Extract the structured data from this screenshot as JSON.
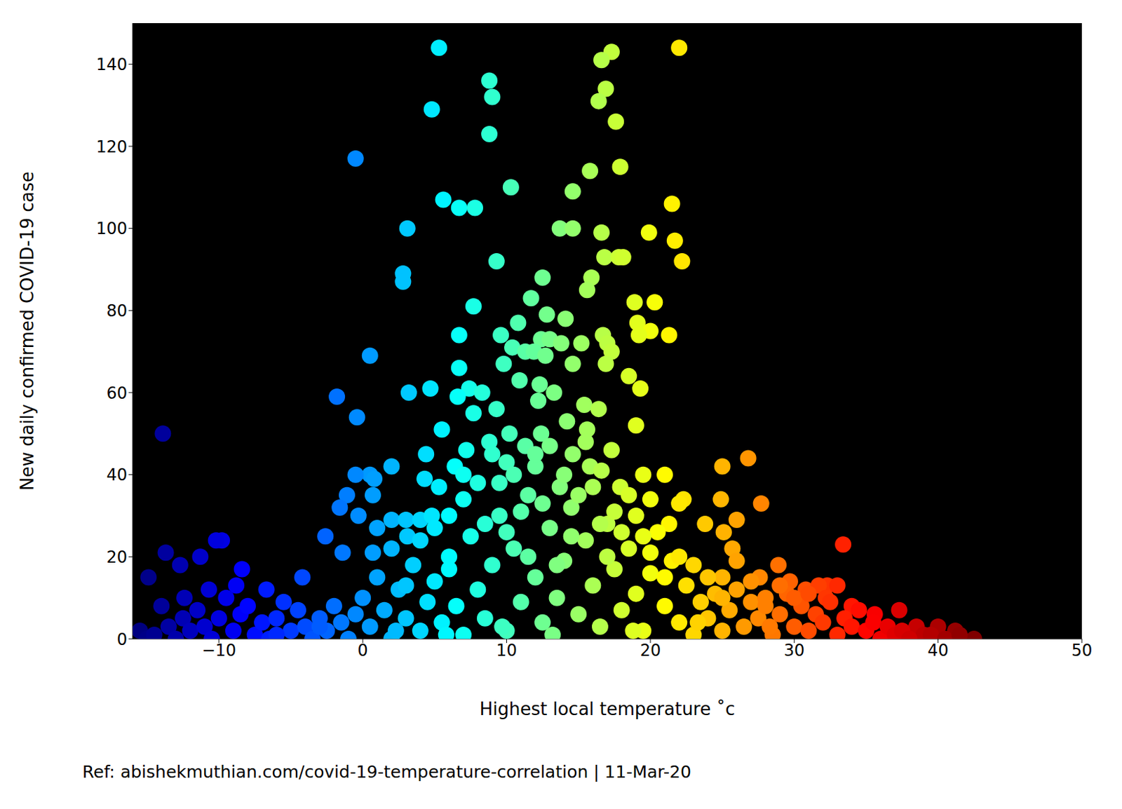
{
  "chart_data": {
    "type": "scatter",
    "x_label": "Highest local temperature ˚c",
    "y_label": "New daily confirmed COVID-19 case",
    "annotations": [
      "Ref: abishekmuthian.com/covid-19-temperature-correlation | 11-Mar-20"
    ],
    "x": [
      5.3,
      22,
      17.3,
      16.6,
      8.8,
      16.9,
      9,
      16.4,
      4.8,
      17.6,
      8.8,
      -0.5,
      17.9,
      15.8,
      21.5,
      10.3,
      14.6,
      5.6,
      6.7,
      7.8,
      3.1,
      13.7,
      14.6,
      16.6,
      19.9,
      21.7,
      16.8,
      17.8,
      18.1,
      22.2,
      9.3,
      2.8,
      2.8,
      15.9,
      12.5,
      15.6,
      11.7,
      18.9,
      20.3,
      7.7,
      12.8,
      14.1,
      19.1,
      10.8,
      20,
      19.2,
      21.3,
      6.7,
      16.7,
      9.6,
      12.4,
      13,
      13.8,
      15.2,
      17,
      10.4,
      11.3,
      11.9,
      17.3,
      12.7,
      0.5,
      9.8,
      14.6,
      16.9,
      6.7,
      18.5,
      10.9,
      12.3,
      7.4,
      4.7,
      19.3,
      3.2,
      8.3,
      13.3,
      -1.8,
      6.6,
      12.2,
      15.4,
      16.4,
      9.3,
      -0.4,
      7.7,
      14.2,
      19,
      5.5,
      15.6,
      10.2,
      12.4,
      8.8,
      11.3,
      17.3,
      7.2,
      14.6,
      4.4,
      21,
      19.5,
      10,
      12,
      15.8,
      16.6,
      6.4,
      2,
      26.8,
      25,
      0.5,
      -0.5,
      0.8,
      4.3,
      13.7,
      17.9,
      -1.1,
      0.7,
      5.3,
      22.3,
      20,
      24.9,
      27.7,
      -1.6,
      -0.3,
      2,
      3,
      4,
      4.8,
      6,
      22,
      23.8,
      26,
      21.3,
      25.1,
      -2.6,
      3.1,
      -1.4,
      0.7,
      25.7,
      33.4,
      -9.8,
      -10.2,
      -13.7,
      -12.7,
      -8.4,
      -13.9,
      -14.9,
      -4.2,
      -6.7,
      -10.7,
      -12.4,
      -8.8,
      -14,
      -11.3,
      28.9,
      25,
      27.6,
      29.7,
      30.8,
      32.3,
      33,
      31.7,
      32.2,
      34,
      35.6,
      37.3,
      38.5,
      40,
      41.2,
      42.5,
      36.6,
      39,
      -15.5,
      -15,
      -14.5,
      -13.5,
      -13,
      -12.5,
      -12,
      -11.5,
      -11,
      -10.5,
      -10,
      -9.5,
      -9,
      -8.5,
      -8,
      -7.5,
      -7,
      -6.5,
      -6,
      -5.5,
      -5,
      -4.5,
      -4,
      -3.5,
      -3,
      -2.5,
      -2,
      -1.5,
      -1,
      -0.5,
      0,
      0.5,
      1,
      1.5,
      2,
      2.5,
      3,
      3.5,
      4,
      4.5,
      5,
      5.5,
      6,
      6.5,
      7,
      7.5,
      8,
      8.5,
      9,
      9.5,
      10,
      10.5,
      11,
      11.5,
      12,
      12.5,
      13,
      13.5,
      14,
      14.5,
      15,
      15.5,
      16,
      16.5,
      17,
      17.5,
      18,
      18.5,
      19,
      19.5,
      20,
      20.5,
      21,
      21.5,
      22,
      22.5,
      23,
      23.5,
      24,
      24.5,
      25,
      25.5,
      26,
      26.5,
      27,
      27.5,
      28,
      28.5,
      29,
      29.5,
      30,
      30.5,
      31,
      31.5,
      32,
      32.5,
      33,
      33.5,
      34,
      34.5,
      35,
      35.5,
      36,
      36.5,
      37,
      37.5,
      38,
      39.5,
      40.5,
      41.5,
      1,
      2,
      3,
      4,
      5,
      6,
      7,
      7,
      8,
      8.5,
      9,
      9.5,
      10,
      10.5,
      11,
      11.5,
      12,
      12.5,
      13,
      13.5,
      14,
      14.5,
      15,
      15.5,
      16,
      16.5,
      17,
      17.5,
      18,
      18.5,
      19,
      19.5,
      20,
      21,
      22,
      23,
      24,
      25,
      26,
      27,
      28,
      29,
      30,
      31,
      -6,
      -3,
      2.3,
      5.8,
      9.7,
      13.2,
      18.8,
      23.3,
      28.3
    ],
    "values": [
      144,
      144,
      143,
      141,
      136,
      134,
      132,
      131,
      129,
      126,
      123,
      117,
      115,
      114,
      106,
      110,
      109,
      107,
      105,
      105,
      100,
      100,
      100,
      99,
      99,
      97,
      93,
      93,
      93,
      92,
      92,
      89,
      87,
      88,
      88,
      85,
      83,
      82,
      82,
      81,
      79,
      78,
      77,
      77,
      75,
      74,
      74,
      74,
      74,
      74,
      73,
      73,
      72,
      72,
      72,
      71,
      70,
      70,
      70,
      69,
      69,
      67,
      67,
      67,
      66,
      64,
      63,
      62,
      61,
      61,
      61,
      60,
      60,
      60,
      59,
      59,
      58,
      57,
      56,
      56,
      54,
      55,
      53,
      52,
      51,
      51,
      50,
      50,
      48,
      47,
      46,
      46,
      45,
      45,
      40,
      40,
      43,
      42,
      42,
      41,
      42,
      42,
      44,
      42,
      40,
      40,
      39,
      39,
      37,
      37,
      35,
      35,
      37,
      34,
      34,
      34,
      33,
      32,
      30,
      29,
      29,
      29,
      30,
      30,
      33,
      28,
      29,
      28,
      26,
      25,
      25,
      21,
      21,
      22,
      23,
      24,
      24,
      21,
      18,
      17,
      50,
      15,
      15,
      12,
      12,
      10,
      13,
      8,
      20,
      18,
      15,
      15,
      14,
      12,
      13,
      13,
      13,
      10,
      8,
      6,
      7,
      3,
      3,
      2,
      0,
      1,
      1,
      2,
      0,
      1,
      3,
      0,
      5,
      2,
      7,
      3,
      0,
      5,
      10,
      2,
      6,
      8,
      1,
      4,
      0,
      5,
      9,
      2,
      7,
      3,
      0,
      5,
      2,
      8,
      4,
      0,
      6,
      10,
      3,
      15,
      7,
      0,
      12,
      5,
      18,
      2,
      9,
      14,
      4,
      20,
      8,
      1,
      25,
      12,
      5,
      18,
      30,
      2,
      22,
      9,
      35,
      15,
      4,
      27,
      10,
      19,
      32,
      6,
      24,
      13,
      3,
      28,
      17,
      7,
      22,
      11,
      2,
      16,
      26,
      8,
      19,
      4,
      13,
      1,
      9,
      5,
      11,
      2,
      7,
      12,
      3,
      9,
      5,
      10,
      1,
      6,
      11,
      3,
      8,
      2,
      6,
      4,
      9,
      1,
      5,
      3,
      7,
      2,
      4,
      0,
      3,
      1,
      2,
      0,
      1,
      0,
      1,
      27,
      22,
      13,
      24,
      27,
      17,
      34,
      40,
      38,
      28,
      45,
      38,
      26,
      40,
      31,
      20,
      45,
      33,
      47,
      18,
      40,
      25,
      35,
      48,
      37,
      28,
      20,
      31,
      26,
      35,
      30,
      25,
      21,
      15,
      20,
      18,
      15,
      10,
      19,
      14,
      8,
      13,
      10,
      11,
      1,
      3,
      2,
      1,
      3,
      1,
      2,
      4,
      3
    ],
    "xlim": [
      -16,
      50
    ],
    "xticks": [
      {
        "value": -10,
        "label": "−10"
      },
      0,
      10,
      20,
      30,
      40,
      50
    ],
    "ylim": [
      0,
      150
    ],
    "yticks": [
      0,
      20,
      40,
      60,
      80,
      100,
      120,
      140
    ],
    "grid": false,
    "marker": "circle"
  }
}
